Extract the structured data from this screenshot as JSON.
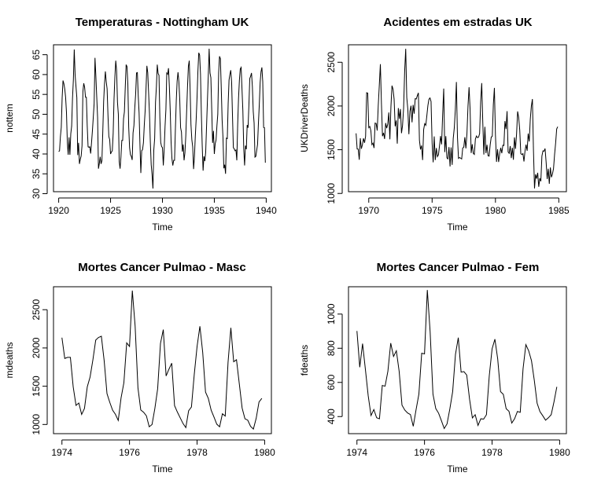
{
  "chart_data": [
    {
      "type": "line",
      "title": "Temperaturas - Nottingham UK",
      "xlabel": "Time",
      "ylabel": "nottem",
      "xlim": [
        1919.5,
        1940.5
      ],
      "ylim": [
        30.5,
        67.5
      ],
      "xticks": [
        1920,
        1925,
        1930,
        1935,
        1940
      ],
      "yticks": [
        30,
        35,
        40,
        45,
        50,
        55,
        60,
        65
      ],
      "start": 1920,
      "frequency": 12,
      "series": [
        {
          "values": [
            40.6,
            40.8,
            44.4,
            46.7,
            54.1,
            58.5,
            57.7,
            56.4,
            54.3,
            50.5,
            42.9,
            39.8,
            44.2,
            39.8,
            45.1,
            47.0,
            54.1,
            58.7,
            66.3,
            59.9,
            57.0,
            54.2,
            39.7,
            42.8,
            37.5,
            38.7,
            39.5,
            42.1,
            55.7,
            57.8,
            56.8,
            54.3,
            54.3,
            47.1,
            41.8,
            41.7,
            41.8,
            40.1,
            42.9,
            45.8,
            49.2,
            52.7,
            64.2,
            59.6,
            54.4,
            49.2,
            36.3,
            37.6,
            39.3,
            37.5,
            38.3,
            45.5,
            53.2,
            57.7,
            60.8,
            58.2,
            56.4,
            49.8,
            44.4,
            43.6,
            40.0,
            40.5,
            40.8,
            45.1,
            53.8,
            59.4,
            63.5,
            61.0,
            53.0,
            50.0,
            38.1,
            36.3,
            39.2,
            43.4,
            43.4,
            48.9,
            50.6,
            56.8,
            62.5,
            62.0,
            57.5,
            46.7,
            41.6,
            39.8,
            39.4,
            38.5,
            45.3,
            47.1,
            51.7,
            55.0,
            60.4,
            60.5,
            54.7,
            50.3,
            42.3,
            35.2,
            40.8,
            41.1,
            42.8,
            47.3,
            50.9,
            56.4,
            62.2,
            60.5,
            55.4,
            50.2,
            43.0,
            37.3,
            34.8,
            31.3,
            41.0,
            43.9,
            53.1,
            56.9,
            62.5,
            60.3,
            59.8,
            49.2,
            42.9,
            41.9,
            41.6,
            37.1,
            41.2,
            46.9,
            51.2,
            60.4,
            60.1,
            61.6,
            57.0,
            50.9,
            43.0,
            38.8,
            37.1,
            38.4,
            38.4,
            46.5,
            53.5,
            58.4,
            60.6,
            58.2,
            53.8,
            46.6,
            45.5,
            40.6,
            42.4,
            38.4,
            40.3,
            44.6,
            50.9,
            57.0,
            62.1,
            63.5,
            56.3,
            47.3,
            43.6,
            41.8,
            36.2,
            39.3,
            44.5,
            48.7,
            54.2,
            60.8,
            65.5,
            64.9,
            60.1,
            50.2,
            42.1,
            35.8,
            39.4,
            38.2,
            40.4,
            46.9,
            53.4,
            59.6,
            66.5,
            60.4,
            59.2,
            51.2,
            42.8,
            45.8,
            40.0,
            42.6,
            43.5,
            47.1,
            50.0,
            60.5,
            64.6,
            64.0,
            56.8,
            48.6,
            44.2,
            36.4,
            37.3,
            35.0,
            44.0,
            43.9,
            52.7,
            58.6,
            60.0,
            61.1,
            58.1,
            49.6,
            41.6,
            41.3,
            40.8,
            41.0,
            38.4,
            47.4,
            54.1,
            58.6,
            61.4,
            61.8,
            56.3,
            50.9,
            41.4,
            37.1,
            42.1,
            41.2,
            47.3,
            46.6,
            52.4,
            59.0,
            59.6,
            60.4,
            57.0,
            50.7,
            47.8,
            39.2,
            39.4,
            40.9,
            42.4,
            47.8,
            52.4,
            58.0,
            60.7,
            61.8,
            58.2,
            46.7,
            46.6,
            37.8
          ]
        }
      ]
    },
    {
      "type": "line",
      "title": "Acidentes em estradas UK",
      "xlabel": "Time",
      "ylabel": "UKDriverDeaths",
      "xlim": [
        1968.4,
        1985.6
      ],
      "ylim": [
        1020,
        2700
      ],
      "xticks": [
        1970,
        1975,
        1980,
        1985
      ],
      "yticks": [
        1000,
        1500,
        2000,
        2500
      ],
      "start": 1969,
      "frequency": 12,
      "series": [
        {
          "values": [
            1687,
            1508,
            1507,
            1385,
            1632,
            1511,
            1559,
            1630,
            1579,
            1653,
            2152,
            2148,
            1752,
            1765,
            1717,
            1558,
            1575,
            1520,
            1805,
            1800,
            1719,
            2008,
            2242,
            2478,
            2030,
            1655,
            1693,
            1623,
            1805,
            1746,
            1795,
            1926,
            1619,
            1992,
            2233,
            2192,
            2080,
            1768,
            1835,
            1569,
            1976,
            1853,
            1965,
            1689,
            1778,
            1976,
            2397,
            2654,
            2097,
            1963,
            1677,
            1941,
            2003,
            1813,
            2012,
            1912,
            2084,
            2080,
            2118,
            2150,
            1608,
            1503,
            1548,
            1382,
            1731,
            1798,
            1779,
            1887,
            2004,
            2077,
            2092,
            2051,
            1577,
            1356,
            1652,
            1382,
            1519,
            1421,
            1442,
            1543,
            1656,
            1561,
            1905,
            2199,
            1473,
            1655,
            1407,
            1395,
            1530,
            1309,
            1526,
            1327,
            1627,
            1748,
            1958,
            2274,
            1648,
            1401,
            1411,
            1403,
            1394,
            1520,
            1528,
            1643,
            1515,
            1685,
            2000,
            2215,
            1956,
            1462,
            1563,
            1459,
            1446,
            1622,
            1657,
            1638,
            1643,
            1683,
            2050,
            2262,
            1813,
            1445,
            1762,
            1461,
            1556,
            1431,
            1427,
            1554,
            1645,
            1653,
            2016,
            2207,
            1665,
            1361,
            1506,
            1360,
            1453,
            1522,
            1460,
            1552,
            1548,
            1827,
            1737,
            1941,
            1474,
            1458,
            1542,
            1404,
            1522,
            1385,
            1641,
            1510,
            1681,
            1938,
            1868,
            1726,
            1456,
            1445,
            1456,
            1365,
            1487,
            1558,
            1488,
            1684,
            1594,
            1850,
            1998,
            2079,
            1494,
            1057,
            1218,
            1168,
            1236,
            1076,
            1174,
            1139,
            1427,
            1487,
            1483,
            1513,
            1357,
            1165,
            1282,
            1110,
            1297,
            1185,
            1222,
            1284,
            1444,
            1575,
            1737,
            1763
          ]
        }
      ]
    },
    {
      "type": "line",
      "title": "Mortes Cancer Pulmao - Masc",
      "xlabel": "Time",
      "ylabel": "mdeaths",
      "xlim": [
        1973.75,
        1980.2
      ],
      "ylim": [
        880,
        2800
      ],
      "xticks": [
        1974,
        1976,
        1978,
        1980
      ],
      "yticks": [
        1000,
        1500,
        2000,
        2500
      ],
      "start": 1974,
      "frequency": 12,
      "series": [
        {
          "values": [
            2134,
            1863,
            1877,
            1877,
            1492,
            1249,
            1280,
            1131,
            1209,
            1492,
            1621,
            1846,
            2103,
            2137,
            2153,
            1833,
            1403,
            1288,
            1186,
            1133,
            1053,
            1347,
            1545,
            2066,
            2020,
            2750,
            2283,
            1479,
            1189,
            1160,
            1113,
            970,
            999,
            1208,
            1467,
            2059,
            2240,
            1634,
            1722,
            1801,
            1246,
            1162,
            1087,
            1013,
            959,
            1179,
            1229,
            1655,
            2019,
            2284,
            1942,
            1423,
            1340,
            1187,
            1098,
            1004,
            970,
            1140,
            1110,
            1812,
            2263,
            1820,
            1846,
            1531,
            1215,
            1075,
            1056,
            975,
            940,
            1081,
            1294,
            1341
          ]
        }
      ]
    },
    {
      "type": "line",
      "title": "Mortes Cancer Pulmao - Fem",
      "xlabel": "Time",
      "ylabel": "fdeaths",
      "xlim": [
        1973.75,
        1980.2
      ],
      "ylim": [
        300,
        1160
      ],
      "xticks": [
        1974,
        1976,
        1978,
        1980
      ],
      "yticks": [
        400,
        600,
        800,
        1000
      ],
      "start": 1974,
      "frequency": 12,
      "series": [
        {
          "values": [
            901,
            689,
            827,
            677,
            522,
            406,
            441,
            393,
            387,
            582,
            578,
            666,
            830,
            752,
            785,
            664,
            467,
            438,
            421,
            412,
            343,
            440,
            531,
            771,
            767,
            1141,
            896,
            532,
            447,
            420,
            376,
            330,
            357,
            445,
            546,
            764,
            862,
            660,
            663,
            643,
            502,
            392,
            411,
            348,
            387,
            385,
            411,
            638,
            796,
            853,
            737,
            546,
            530,
            446,
            431,
            362,
            387,
            430,
            425,
            679,
            821,
            785,
            727,
            612,
            478,
            429,
            405,
            379,
            393,
            411,
            487,
            574
          ]
        }
      ]
    }
  ]
}
